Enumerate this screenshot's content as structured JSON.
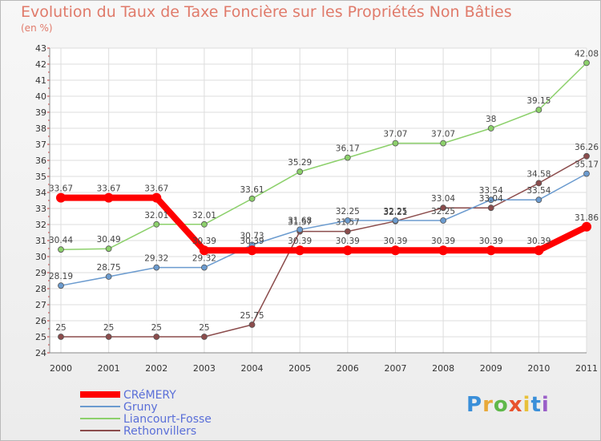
{
  "chart_data": {
    "type": "line",
    "title": "Evolution du Taux de Taxe Foncière sur les Propriétés Non Bâties",
    "unit": "(en %)",
    "xlabel": "",
    "ylabel": "",
    "ylim": [
      24,
      43
    ],
    "x": [
      "2000",
      "2001",
      "2002",
      "2003",
      "2004",
      "2005",
      "2006",
      "2007",
      "2008",
      "2009",
      "2010",
      "2011"
    ],
    "yticks": [
      24,
      25,
      26,
      27,
      28,
      29,
      30,
      31,
      32,
      33,
      34,
      35,
      36,
      37,
      38,
      39,
      40,
      41,
      42,
      43
    ],
    "series": [
      {
        "name": "CRéMERY",
        "color": "#ff0000",
        "values": [
          33.67,
          33.67,
          33.67,
          30.39,
          30.39,
          30.39,
          30.39,
          30.39,
          30.39,
          30.39,
          30.39,
          31.86
        ],
        "labels": [
          "33.67",
          "33.67",
          "33.67",
          "30.39",
          "30.39",
          "30.39",
          "30.39",
          "30.39",
          "30.39",
          "30.39",
          "30.39",
          "31.86"
        ]
      },
      {
        "name": "Gruny",
        "color": "#6b9bcf",
        "values": [
          28.19,
          28.75,
          29.32,
          29.32,
          30.73,
          31.68,
          32.25,
          32.25,
          32.25,
          33.54,
          33.54,
          35.17
        ],
        "labels": [
          "28.19",
          "28.75",
          "29.32",
          "29.32",
          "30.73",
          "31.68",
          "32.25",
          "32.25",
          "32.25",
          "33.54",
          "33.54",
          "35.17"
        ]
      },
      {
        "name": "Liancourt-Fosse",
        "color": "#8cd06b",
        "values": [
          30.44,
          30.49,
          32.01,
          32.01,
          33.61,
          35.29,
          36.17,
          37.07,
          37.07,
          38,
          39.15,
          42.08
        ],
        "labels": [
          "30.44",
          "30.49",
          "32.01",
          "32.01",
          "33.61",
          "35.29",
          "36.17",
          "37.07",
          "37.07",
          "38",
          "39.15",
          "42.08"
        ]
      },
      {
        "name": "Rethonvillers",
        "color": "#8b4c4c",
        "values": [
          25,
          25,
          25,
          25,
          25.75,
          31.57,
          31.57,
          32.21,
          33.04,
          33.04,
          34.58,
          36.26
        ],
        "labels": [
          "25",
          "25",
          "25",
          "25",
          "25.75",
          "31.57",
          "31.57",
          "32.21",
          "33.04",
          "33.04",
          "34.58",
          "36.26"
        ]
      }
    ]
  },
  "legend": {
    "items": [
      "CRéMERY",
      "Gruny",
      "Liancourt-Fosse",
      "Rethonvillers"
    ]
  },
  "logo": {
    "text": "Proxiti"
  }
}
